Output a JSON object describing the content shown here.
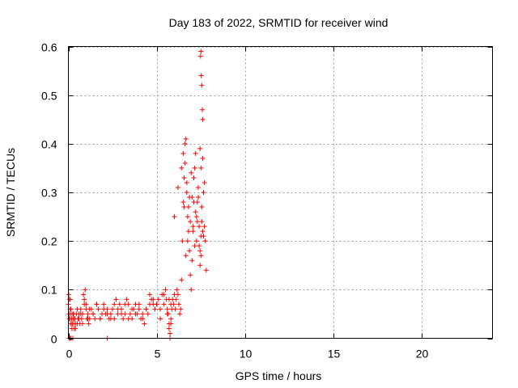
{
  "chart_data": {
    "type": "scatter",
    "title": "Day 183 of 2022, SRMTID for receiver wind",
    "xlabel": "GPS time / hours",
    "ylabel": "SRMTID / TECUs",
    "xlim": [
      0,
      24
    ],
    "ylim": [
      0,
      0.6
    ],
    "xticks": [
      0,
      5,
      10,
      15,
      20
    ],
    "yticks": [
      0,
      0.1,
      0.2,
      0.3,
      0.4,
      0.5,
      0.6
    ],
    "grid": true,
    "marker": "plus",
    "marker_color": "#ff0000",
    "series": [
      {
        "name": "SRMTID",
        "x": [
          0.0,
          0.02,
          0.04,
          0.06,
          0.08,
          0.1,
          0.12,
          0.15,
          0.18,
          0.2,
          0.22,
          0.25,
          0.28,
          0.3,
          0.33,
          0.36,
          0.4,
          0.45,
          0.5,
          0.55,
          0.6,
          0.65,
          0.7,
          0.75,
          0.8,
          0.85,
          0.9,
          0.95,
          1.0,
          1.05,
          1.1,
          1.15,
          1.2,
          1.3,
          1.4,
          1.5,
          1.6,
          1.7,
          1.8,
          1.9,
          2.0,
          2.1,
          2.2,
          2.3,
          2.4,
          2.5,
          2.6,
          2.7,
          2.8,
          2.9,
          3.0,
          3.1,
          3.2,
          3.3,
          3.4,
          3.5,
          3.6,
          3.7,
          3.8,
          3.9,
          4.0,
          4.1,
          4.2,
          4.3,
          4.4,
          4.5,
          4.6,
          4.7,
          4.8,
          4.9,
          5.0,
          5.1,
          5.2,
          5.3,
          5.4,
          5.5,
          5.55,
          5.6,
          5.65,
          5.7,
          5.75,
          5.8,
          5.85,
          5.9,
          5.95,
          6.0,
          6.05,
          6.1,
          6.15,
          6.2,
          6.25,
          6.3,
          6.35,
          6.4,
          6.45,
          6.5,
          6.55,
          6.6,
          6.65,
          6.7,
          6.75,
          6.8,
          6.85,
          6.9,
          6.95,
          7.0,
          7.05,
          7.1,
          7.15,
          7.2,
          7.25,
          7.3,
          7.35,
          7.4,
          7.45,
          7.5,
          7.55,
          7.6,
          7.65,
          7.7,
          7.75,
          7.8,
          0.05,
          0.1,
          0.15,
          0.2,
          0.3,
          0.35,
          0.4,
          0.5,
          0.6,
          0.7,
          0.8,
          0.9,
          1.0,
          1.1,
          1.2,
          1.4,
          1.6,
          1.8,
          2.0,
          2.2,
          2.4,
          2.6,
          2.8,
          3.0,
          3.2,
          3.4,
          3.6,
          3.8,
          4.0,
          4.2,
          4.4,
          4.6,
          4.8,
          5.0,
          5.2,
          5.4,
          5.6,
          5.7,
          5.8,
          6.0,
          6.2,
          6.4,
          6.5,
          6.6,
          6.7,
          6.8,
          6.9,
          7.0,
          7.1,
          7.2,
          7.3,
          7.4,
          7.5,
          7.6,
          7.7,
          6.55,
          6.65,
          6.75,
          6.85,
          6.95,
          7.05,
          7.15,
          7.25,
          7.35,
          7.45,
          7.55,
          7.65,
          7.48,
          7.5,
          7.52,
          7.55,
          7.58,
          7.6,
          7.5,
          7.45,
          0.05,
          0.1,
          0.15,
          0.25,
          2.2,
          5.7,
          5.75,
          5.8
        ],
        "y": [
          0.07,
          0.09,
          0.05,
          0.08,
          0.04,
          0.06,
          0.03,
          0.05,
          0.04,
          0.02,
          0.03,
          0.05,
          0.04,
          0.03,
          0.02,
          0.04,
          0.03,
          0.05,
          0.03,
          0.04,
          0.05,
          0.03,
          0.06,
          0.04,
          0.05,
          0.09,
          0.07,
          0.1,
          0.06,
          0.04,
          0.05,
          0.03,
          0.04,
          0.06,
          0.05,
          0.04,
          0.07,
          0.06,
          0.04,
          0.05,
          0.07,
          0.05,
          0.06,
          0.04,
          0.05,
          0.06,
          0.04,
          0.08,
          0.05,
          0.07,
          0.06,
          0.04,
          0.05,
          0.08,
          0.07,
          0.05,
          0.04,
          0.06,
          0.07,
          0.05,
          0.06,
          0.04,
          0.05,
          0.03,
          0.06,
          0.05,
          0.07,
          0.08,
          0.07,
          0.06,
          0.07,
          0.08,
          0.06,
          0.09,
          0.07,
          0.1,
          0.08,
          0.06,
          0.05,
          0.03,
          0.01,
          0.04,
          0.06,
          0.08,
          0.07,
          0.09,
          0.06,
          0.08,
          0.1,
          0.09,
          0.07,
          0.05,
          0.06,
          0.12,
          0.2,
          0.28,
          0.33,
          0.36,
          0.41,
          0.3,
          0.25,
          0.22,
          0.18,
          0.13,
          0.1,
          0.16,
          0.22,
          0.28,
          0.35,
          0.26,
          0.2,
          0.24,
          0.31,
          0.19,
          0.15,
          0.21,
          0.27,
          0.37,
          0.3,
          0.23,
          0.2,
          0.14,
          0.04,
          0.08,
          0.06,
          0.03,
          0.05,
          0.04,
          0.02,
          0.06,
          0.04,
          0.05,
          0.03,
          0.08,
          0.07,
          0.04,
          0.06,
          0.05,
          0.07,
          0.04,
          0.06,
          0.05,
          0.04,
          0.07,
          0.06,
          0.05,
          0.07,
          0.04,
          0.06,
          0.05,
          0.07,
          0.04,
          0.06,
          0.09,
          0.08,
          0.07,
          0.04,
          0.09,
          0.05,
          0.08,
          0.07,
          0.25,
          0.31,
          0.35,
          0.38,
          0.4,
          0.32,
          0.27,
          0.24,
          0.29,
          0.33,
          0.38,
          0.28,
          0.23,
          0.17,
          0.22,
          0.32,
          0.27,
          0.17,
          0.2,
          0.29,
          0.34,
          0.23,
          0.19,
          0.25,
          0.29,
          0.18,
          0.24,
          0.21,
          0.58,
          0.59,
          0.54,
          0.52,
          0.47,
          0.45,
          0.35,
          0.39,
          0.0,
          0.0,
          0.0,
          0.0,
          0.0,
          0.02,
          0.0,
          0.03
        ]
      }
    ]
  }
}
